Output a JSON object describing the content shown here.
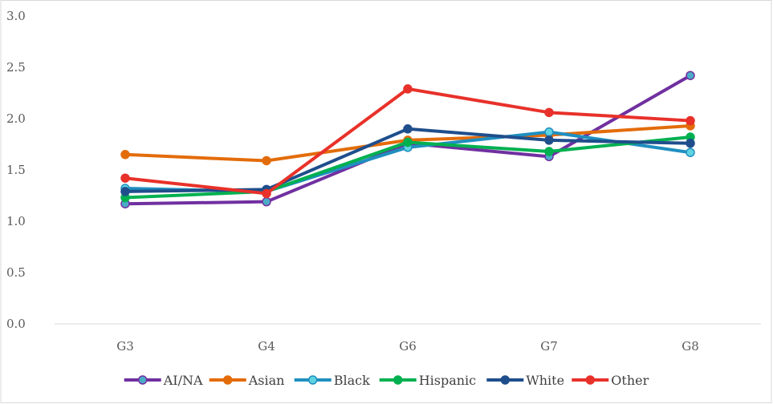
{
  "chart_data": {
    "type": "line",
    "title": "",
    "xlabel": "",
    "ylabel": "",
    "categories": [
      "G3",
      "G4",
      "G6",
      "G7",
      "G8"
    ],
    "ylim": [
      0,
      3.0
    ],
    "yticks": [
      "0.0",
      "0.5",
      "1.0",
      "1.5",
      "2.0",
      "2.5",
      "3.0"
    ],
    "grid": false,
    "legend_position": "bottom",
    "series": [
      {
        "name": "AI/NA",
        "color": "#7030a0",
        "marker_fill": "#4bacc6",
        "values": [
          1.17,
          1.19,
          1.76,
          1.63,
          2.42
        ]
      },
      {
        "name": "Asian",
        "color": "#e36c0a",
        "marker_fill": "#e36c0a",
        "values": [
          1.65,
          1.59,
          1.79,
          1.84,
          1.93
        ]
      },
      {
        "name": "Black",
        "color": "#1f8fc0",
        "marker_fill": "#5fd3e0",
        "values": [
          1.32,
          1.29,
          1.72,
          1.87,
          1.67
        ]
      },
      {
        "name": "Hispanic",
        "color": "#00b050",
        "marker_fill": "#00b050",
        "values": [
          1.23,
          1.29,
          1.77,
          1.68,
          1.82
        ]
      },
      {
        "name": "White",
        "color": "#1f4e8c",
        "marker_fill": "#1f4e8c",
        "values": [
          1.29,
          1.31,
          1.9,
          1.79,
          1.76
        ]
      },
      {
        "name": "Other",
        "color": "#e8312a",
        "marker_fill": "#e8312a",
        "values": [
          1.42,
          1.27,
          2.29,
          2.06,
          1.98
        ]
      }
    ]
  }
}
